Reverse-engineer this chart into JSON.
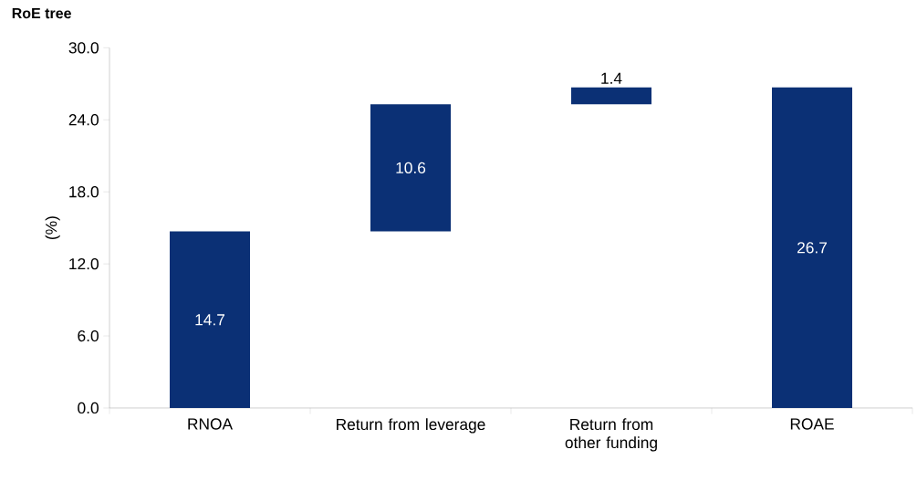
{
  "chart_data": {
    "type": "bar",
    "title": "RoE tree",
    "ylabel": "(%)",
    "categories": [
      "RNOA",
      "Return from leverage",
      "Return from other funding",
      "ROAE"
    ],
    "values": [
      14.7,
      10.6,
      1.4,
      26.7
    ],
    "base": [
      0,
      14.7,
      25.3,
      0
    ],
    "color": "#0b3075",
    "data_labels": true,
    "ylim": [
      0,
      30
    ],
    "yticks": [
      {
        "value": 0,
        "label": "0.0"
      },
      {
        "value": 6,
        "label": "6.0"
      },
      {
        "value": 12,
        "label": "12.0"
      },
      {
        "value": 18,
        "label": "18.0"
      },
      {
        "value": 24,
        "label": "24.0"
      },
      {
        "value": 30,
        "label": "30.0"
      }
    ],
    "grid": false
  }
}
